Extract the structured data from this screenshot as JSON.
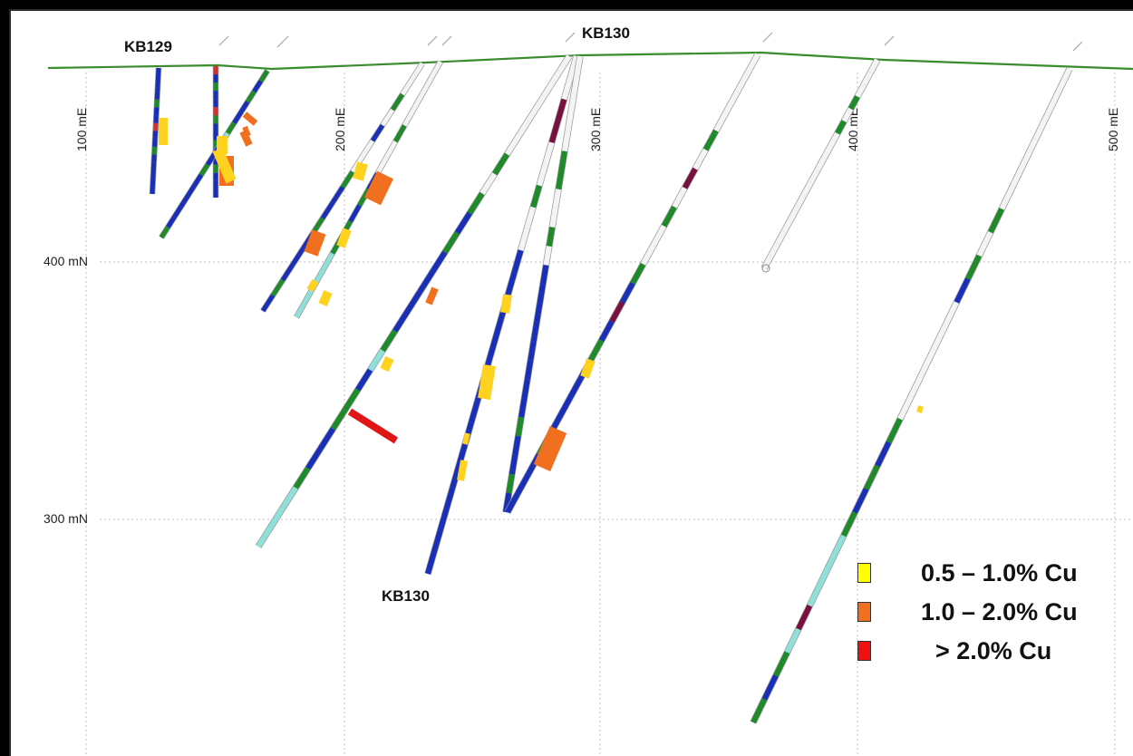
{
  "grid": {
    "easting_labels": [
      "100 mE",
      "200 mE",
      "300 mE",
      "400 mE",
      "500 mE"
    ],
    "northing_labels": [
      "400 mN",
      "300 mN"
    ]
  },
  "hole_labels": [
    "KB129",
    "KB130",
    "KB130"
  ],
  "legend": {
    "items": [
      {
        "label": "0.5 – 1.0% Cu",
        "color": "#ffff00"
      },
      {
        "label": "1.0 – 2.0% Cu",
        "color": "#f07020"
      },
      {
        "label": "> 2.0% Cu",
        "color": "#ee1111"
      }
    ]
  },
  "colors": {
    "topography": "#3a8c2e",
    "grid": "#bbbbbb",
    "lith_blue": "#1a2fb8",
    "lith_green": "#1f8a2a",
    "lith_cyan": "#8fe0d8",
    "lith_maroon": "#7a1040",
    "lith_pale": "#f4f4f4",
    "grade_low": "#ffd21f",
    "grade_mid": "#f07020",
    "grade_high": "#e01515"
  }
}
